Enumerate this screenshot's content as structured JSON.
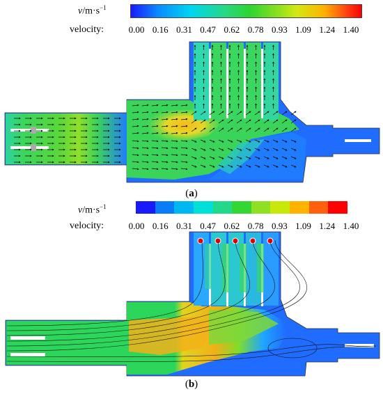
{
  "panel_a": {
    "unit_symbol": "v",
    "unit_rest": "/m·s",
    "unit_exp": "−1",
    "velocity_label": "velocity:",
    "ticks": [
      "0.00",
      "0.16",
      "0.31",
      "0.47",
      "0.62",
      "0.78",
      "0.93",
      "1.09",
      "1.24",
      "1.40"
    ],
    "colorbar_type": "continuous",
    "caption_open": "(",
    "caption_letter": "a",
    "caption_close": ")"
  },
  "panel_b": {
    "unit_symbol": "v",
    "unit_rest": "/m·s",
    "unit_exp": "−1",
    "velocity_label": "velocity:",
    "ticks": [
      "0.00",
      "0.16",
      "0.31",
      "0.47",
      "0.62",
      "0.78",
      "0.93",
      "1.09",
      "1.24",
      "1.40"
    ],
    "colorbar_type": "banded",
    "band_colors": [
      "#1a1aff",
      "#0a7cf5",
      "#00b8f0",
      "#00e0d6",
      "#22d98a",
      "#33d633",
      "#8ee020",
      "#c8e80a",
      "#ffb300",
      "#ff6010",
      "#ff0000"
    ],
    "caption_open": "(",
    "caption_letter": "b",
    "caption_close": ")"
  },
  "colors": {
    "low": "#1e6bff",
    "mid": "#22d36a",
    "high": "#f2c21a",
    "peak": "#ff4a12"
  }
}
